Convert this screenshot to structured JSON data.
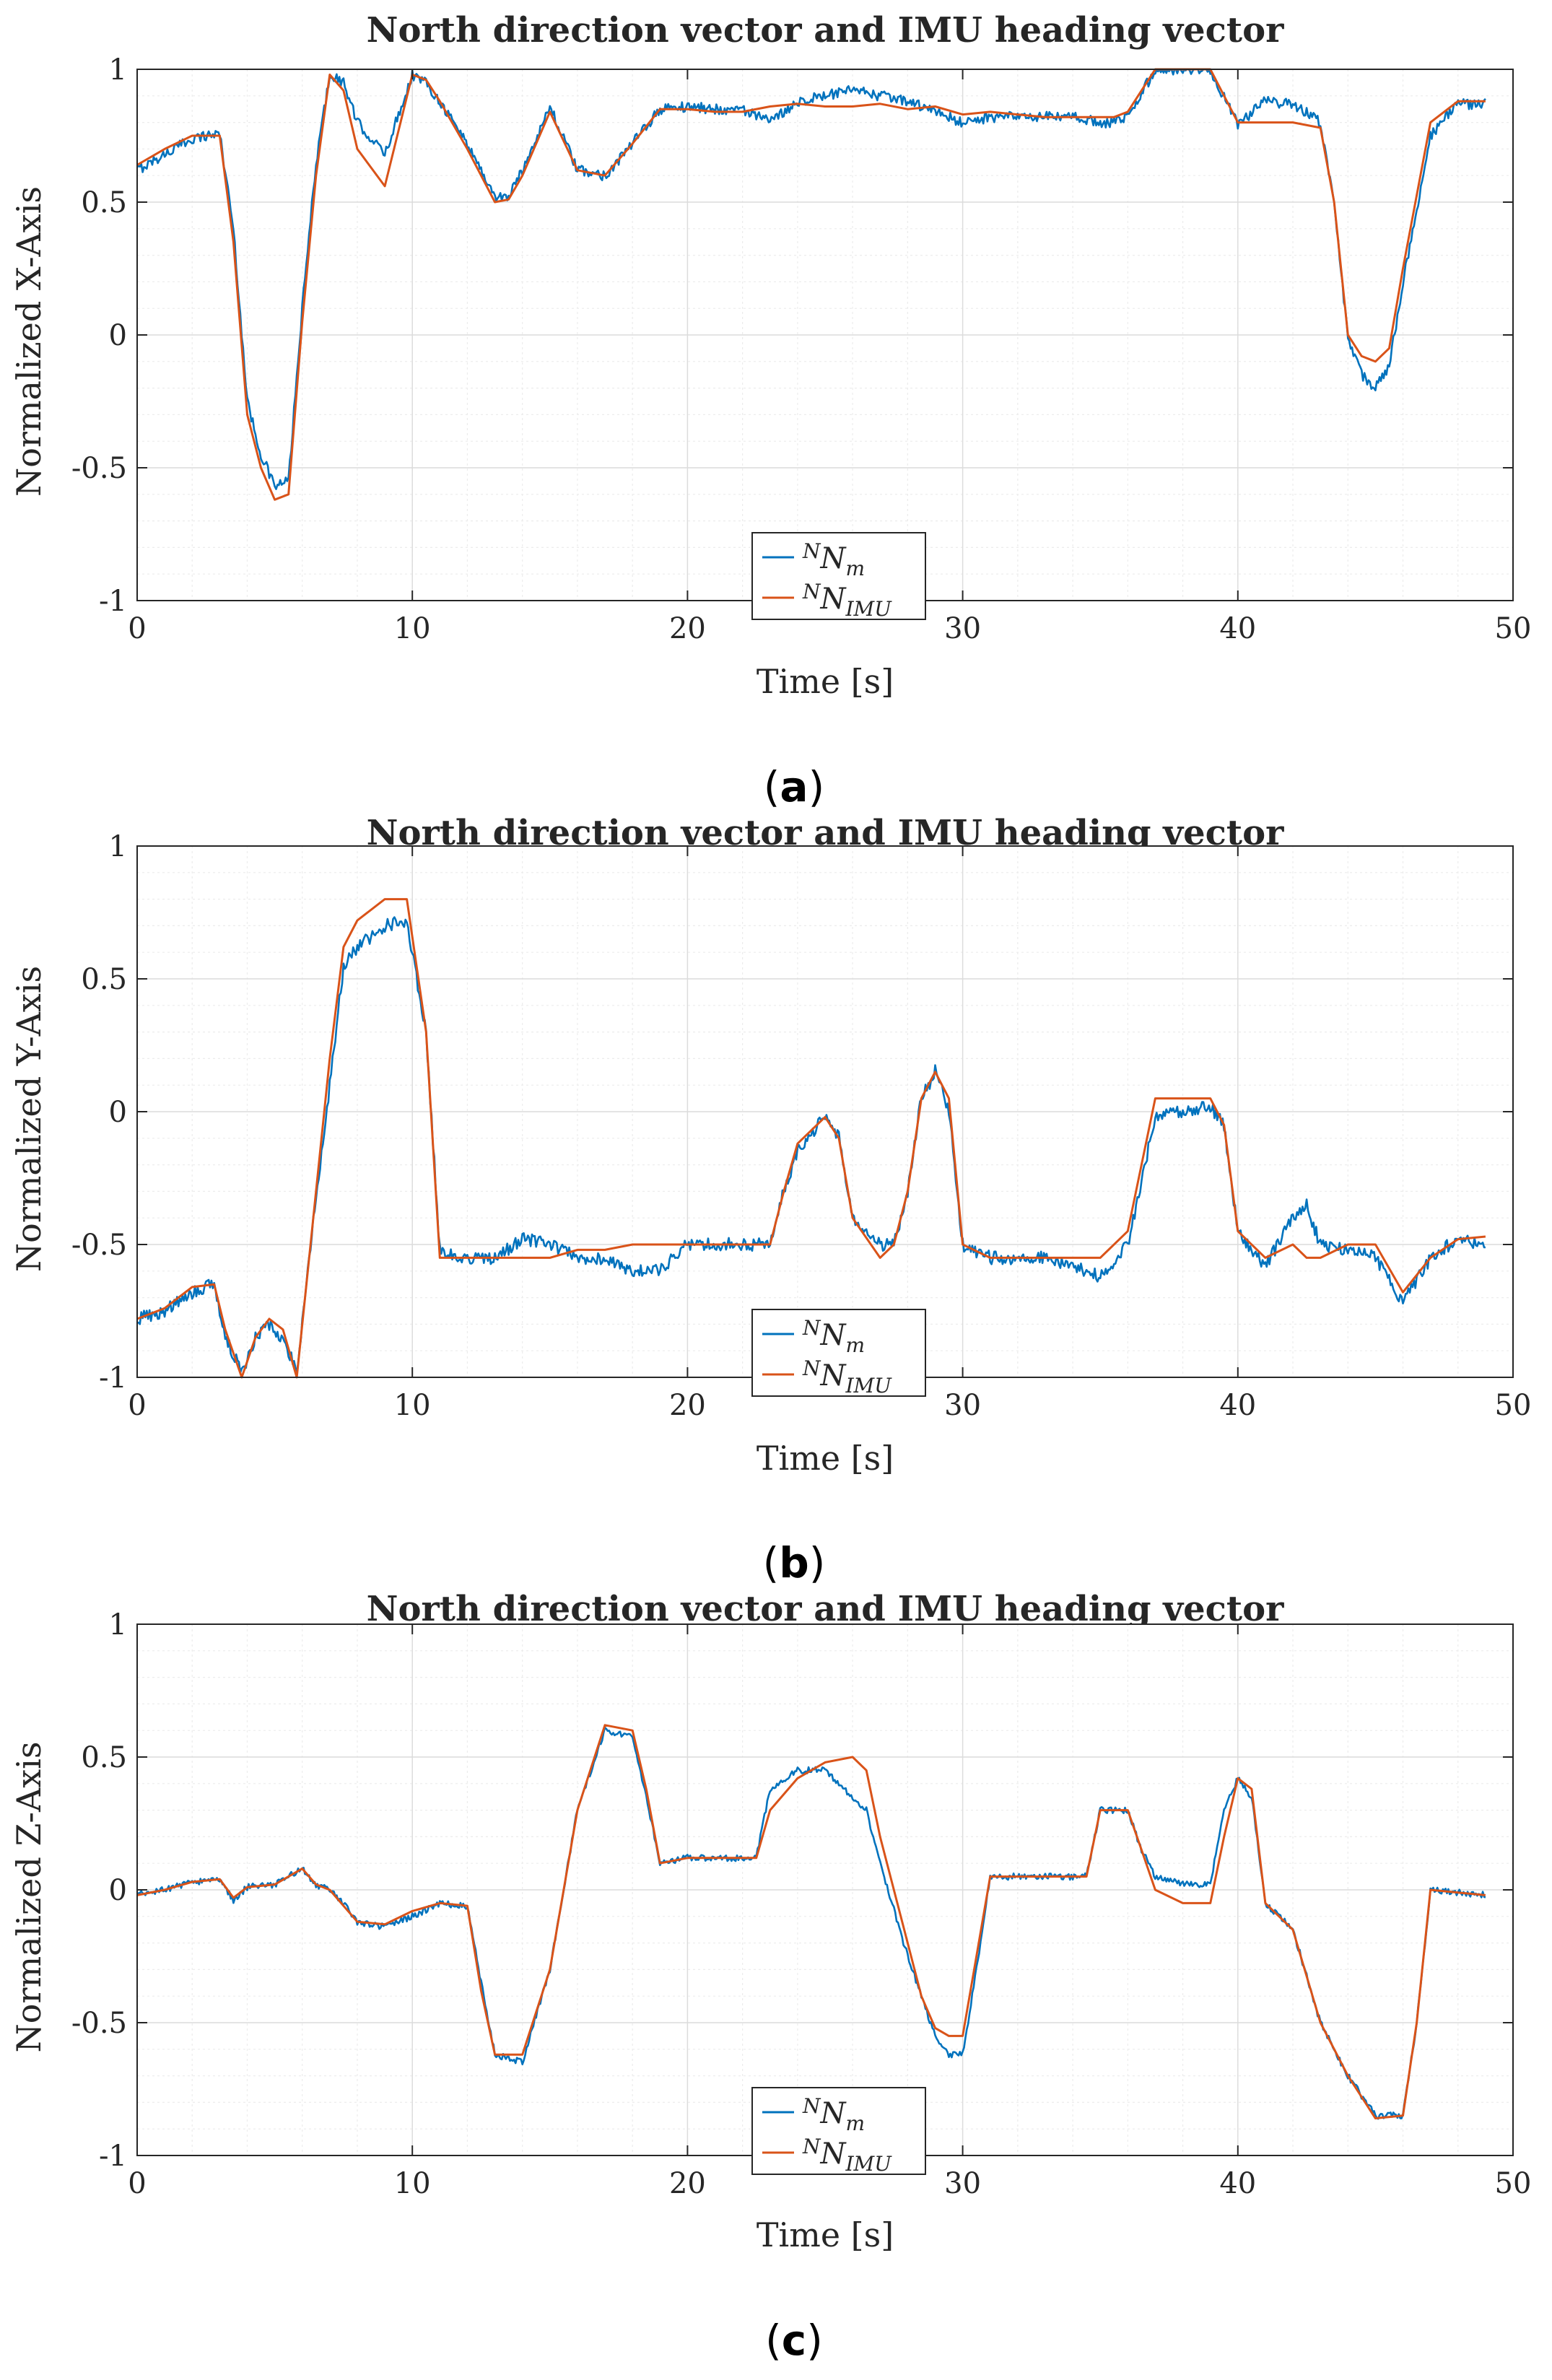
{
  "figure": {
    "panels": [
      {
        "id": "a",
        "caption": "a",
        "title": "North direction vector and IMU heading vector",
        "ylabel": "Normalized X-Axis",
        "xlabel": "Time [s]"
      },
      {
        "id": "b",
        "caption": "b",
        "title": "North direction vector and IMU heading vector",
        "ylabel": "Normalized Y-Axis",
        "xlabel": "Time [s]"
      },
      {
        "id": "c",
        "caption": "c",
        "title": "North direction vector and IMU heading vector",
        "ylabel": "Normalized Z-Axis",
        "xlabel": "Time [s]"
      }
    ],
    "legend": {
      "measured": {
        "base": "N",
        "sup": "N",
        "sub": "m"
      },
      "imu": {
        "base": "N",
        "sup": "N",
        "sub": "IMU"
      }
    }
  },
  "chart_data": [
    {
      "type": "line",
      "title": "North direction vector and IMU heading vector",
      "xlabel": "Time [s]",
      "ylabel": "Normalized X-Axis",
      "xlim": [
        0,
        50
      ],
      "ylim": [
        -1,
        1
      ],
      "xticks": [
        "0",
        "10",
        "20",
        "30",
        "40",
        "50"
      ],
      "yticks": [
        "-1",
        "-0.5",
        "0",
        "0.5",
        "1"
      ],
      "grid": true,
      "legend_position": "bottom-center",
      "series": [
        {
          "name": "N_m",
          "color": "#0072BD",
          "noise": 0.02,
          "x": [
            0,
            1,
            2,
            3,
            3.5,
            4,
            4.5,
            5,
            5.5,
            6,
            6.5,
            7,
            7.5,
            8,
            9,
            10,
            10.5,
            11,
            12,
            13,
            13.5,
            14,
            15,
            16,
            17,
            18,
            19,
            20,
            21,
            22,
            23,
            24,
            25,
            26,
            27,
            28,
            29,
            30,
            31,
            32,
            33,
            34,
            35,
            35.5,
            36,
            37,
            38,
            39,
            40,
            41,
            42,
            43,
            43.5,
            44,
            44.5,
            45,
            45.5,
            46,
            47,
            48,
            49
          ],
          "y": [
            0.62,
            0.68,
            0.74,
            0.76,
            0.4,
            -0.25,
            -0.45,
            -0.57,
            -0.55,
            0.1,
            0.65,
            0.98,
            0.95,
            0.8,
            0.68,
            0.98,
            0.95,
            0.88,
            0.72,
            0.52,
            0.52,
            0.62,
            0.86,
            0.62,
            0.6,
            0.72,
            0.85,
            0.86,
            0.85,
            0.85,
            0.8,
            0.88,
            0.9,
            0.92,
            0.9,
            0.88,
            0.84,
            0.8,
            0.82,
            0.82,
            0.82,
            0.82,
            0.8,
            0.8,
            0.82,
            1.0,
            1.0,
            1.0,
            0.79,
            0.88,
            0.87,
            0.8,
            0.5,
            -0.02,
            -0.15,
            -0.2,
            -0.12,
            0.2,
            0.75,
            0.87,
            0.87
          ]
        },
        {
          "name": "N_IMU",
          "color": "#D95319",
          "noise": 0,
          "x": [
            0,
            1,
            2,
            3,
            3.5,
            4,
            4.5,
            5,
            5.5,
            6,
            6.5,
            7,
            7.5,
            8,
            9,
            10,
            10.5,
            11,
            12,
            13,
            13.5,
            14,
            15,
            16,
            17,
            18,
            19,
            20,
            21,
            22,
            23,
            24,
            25,
            26,
            27,
            28,
            29,
            30,
            31,
            32,
            33,
            34,
            35,
            35.5,
            36,
            37,
            38,
            39,
            40,
            41,
            42,
            43,
            43.5,
            44,
            44.5,
            45,
            45.5,
            46,
            47,
            48,
            49
          ],
          "y": [
            0.64,
            0.7,
            0.75,
            0.75,
            0.35,
            -0.3,
            -0.5,
            -0.62,
            -0.6,
            0.05,
            0.6,
            0.98,
            0.92,
            0.7,
            0.56,
            0.98,
            0.96,
            0.88,
            0.7,
            0.5,
            0.51,
            0.6,
            0.84,
            0.62,
            0.6,
            0.72,
            0.85,
            0.85,
            0.84,
            0.84,
            0.86,
            0.87,
            0.86,
            0.86,
            0.87,
            0.85,
            0.86,
            0.83,
            0.84,
            0.83,
            0.82,
            0.82,
            0.82,
            0.82,
            0.84,
            1.0,
            1.0,
            1.0,
            0.8,
            0.8,
            0.8,
            0.78,
            0.5,
            0.0,
            -0.08,
            -0.1,
            -0.05,
            0.25,
            0.8,
            0.88,
            0.88
          ]
        }
      ]
    },
    {
      "type": "line",
      "title": "North direction vector and IMU heading vector",
      "xlabel": "Time [s]",
      "ylabel": "Normalized Y-Axis",
      "xlim": [
        0,
        50
      ],
      "ylim": [
        -1,
        1
      ],
      "xticks": [
        "0",
        "10",
        "20",
        "30",
        "40",
        "50"
      ],
      "yticks": [
        "-1",
        "-0.5",
        "0",
        "0.5",
        "1"
      ],
      "grid": true,
      "legend_position": "bottom-center",
      "series": [
        {
          "name": "N_m",
          "color": "#0072BD",
          "noise": 0.025,
          "x": [
            0,
            1,
            2,
            2.8,
            3.2,
            3.8,
            4.3,
            4.8,
            5.3,
            5.8,
            6.3,
            7,
            7.5,
            8,
            9,
            9.8,
            10.5,
            11,
            12,
            13,
            14,
            15,
            16,
            17,
            18,
            19,
            20,
            21,
            22,
            23,
            23.5,
            24,
            25,
            25.5,
            26,
            27,
            27.5,
            28,
            28.5,
            29,
            29.5,
            30,
            31,
            32,
            33,
            34,
            35,
            36,
            37,
            38,
            39,
            39.5,
            40,
            41,
            42,
            42.5,
            43,
            44,
            45,
            46,
            47,
            48,
            49
          ],
          "y": [
            -0.78,
            -0.75,
            -0.68,
            -0.65,
            -0.85,
            -0.98,
            -0.85,
            -0.8,
            -0.85,
            -0.98,
            -0.5,
            0.1,
            0.55,
            0.62,
            0.7,
            0.72,
            0.3,
            -0.52,
            -0.55,
            -0.55,
            -0.48,
            -0.5,
            -0.55,
            -0.55,
            -0.6,
            -0.6,
            -0.5,
            -0.5,
            -0.5,
            -0.5,
            -0.3,
            -0.15,
            -0.02,
            -0.1,
            -0.4,
            -0.5,
            -0.5,
            -0.3,
            0.05,
            0.15,
            0.0,
            -0.5,
            -0.55,
            -0.55,
            -0.55,
            -0.58,
            -0.62,
            -0.5,
            -0.02,
            0.0,
            0.02,
            -0.05,
            -0.45,
            -0.58,
            -0.4,
            -0.35,
            -0.5,
            -0.52,
            -0.55,
            -0.72,
            -0.55,
            -0.48,
            -0.5
          ]
        },
        {
          "name": "N_IMU",
          "color": "#D95319",
          "noise": 0,
          "x": [
            0,
            1,
            2,
            2.8,
            3.2,
            3.8,
            4.3,
            4.8,
            5.3,
            5.8,
            6.3,
            7,
            7.5,
            8,
            9,
            9.8,
            10.5,
            11,
            12,
            13,
            14,
            15,
            16,
            17,
            18,
            19,
            20,
            21,
            22,
            23,
            23.5,
            24,
            25,
            25.5,
            26,
            27,
            27.5,
            28,
            28.5,
            29,
            29.5,
            30,
            31,
            32,
            33,
            34,
            35,
            36,
            37,
            38,
            39,
            39.5,
            40,
            41,
            42,
            42.5,
            43,
            44,
            45,
            46,
            47,
            48,
            49
          ],
          "y": [
            -0.78,
            -0.74,
            -0.66,
            -0.65,
            -0.82,
            -1.0,
            -0.85,
            -0.78,
            -0.82,
            -1.0,
            -0.5,
            0.2,
            0.62,
            0.72,
            0.8,
            0.8,
            0.3,
            -0.55,
            -0.55,
            -0.55,
            -0.55,
            -0.55,
            -0.52,
            -0.52,
            -0.5,
            -0.5,
            -0.5,
            -0.5,
            -0.5,
            -0.5,
            -0.3,
            -0.12,
            -0.02,
            -0.1,
            -0.4,
            -0.55,
            -0.5,
            -0.3,
            0.05,
            0.15,
            0.05,
            -0.5,
            -0.55,
            -0.55,
            -0.55,
            -0.55,
            -0.55,
            -0.45,
            0.05,
            0.05,
            0.05,
            -0.05,
            -0.45,
            -0.55,
            -0.5,
            -0.55,
            -0.55,
            -0.5,
            -0.5,
            -0.68,
            -0.55,
            -0.48,
            -0.47
          ]
        }
      ]
    },
    {
      "type": "line",
      "title": "North direction vector and IMU heading vector",
      "xlabel": "Time [s]",
      "ylabel": "Normalized Z-Axis",
      "xlim": [
        0,
        50
      ],
      "ylim": [
        -1,
        1
      ],
      "xticks": [
        "0",
        "10",
        "20",
        "30",
        "40",
        "50"
      ],
      "yticks": [
        "-1",
        "-0.5",
        "0",
        "0.5",
        "1"
      ],
      "grid": true,
      "legend_position": "bottom-center",
      "series": [
        {
          "name": "N_m",
          "color": "#0072BD",
          "noise": 0.012,
          "x": [
            0,
            1,
            2,
            3,
            3.5,
            4,
            5,
            6,
            6.5,
            7,
            7.5,
            8,
            9,
            10,
            11,
            12,
            12.5,
            13,
            14,
            15,
            16,
            17,
            18,
            18.5,
            19,
            20,
            21,
            22,
            22.5,
            23,
            24,
            25,
            26,
            26.5,
            27,
            28,
            28.5,
            29,
            29.5,
            30,
            30.5,
            31,
            32,
            33,
            34,
            34.5,
            35,
            36,
            36.5,
            37,
            38,
            39,
            39.5,
            40,
            40.5,
            41,
            42,
            43,
            44,
            45,
            46,
            46.5,
            47,
            48,
            49
          ],
          "y": [
            -0.02,
            0.0,
            0.03,
            0.04,
            -0.04,
            0.01,
            0.02,
            0.08,
            0.02,
            0.0,
            -0.05,
            -0.12,
            -0.14,
            -0.1,
            -0.05,
            -0.06,
            -0.35,
            -0.62,
            -0.65,
            -0.3,
            0.3,
            0.6,
            0.58,
            0.35,
            0.1,
            0.12,
            0.12,
            0.12,
            0.12,
            0.38,
            0.45,
            0.45,
            0.35,
            0.3,
            0.1,
            -0.25,
            -0.4,
            -0.55,
            -0.62,
            -0.62,
            -0.3,
            0.05,
            0.05,
            0.05,
            0.05,
            0.05,
            0.3,
            0.3,
            0.15,
            0.05,
            0.02,
            0.02,
            0.3,
            0.42,
            0.35,
            -0.05,
            -0.15,
            -0.5,
            -0.7,
            -0.85,
            -0.85,
            -0.5,
            0.0,
            -0.01,
            -0.02
          ]
        },
        {
          "name": "N_IMU",
          "color": "#D95319",
          "noise": 0,
          "x": [
            0,
            1,
            2,
            3,
            3.5,
            4,
            5,
            6,
            6.5,
            7,
            7.5,
            8,
            9,
            10,
            11,
            12,
            12.5,
            13,
            14,
            15,
            16,
            17,
            18,
            18.5,
            19,
            20,
            21,
            22,
            22.5,
            23,
            24,
            25,
            26,
            26.5,
            27,
            28,
            28.5,
            29,
            29.5,
            30,
            30.5,
            31,
            32,
            33,
            34,
            34.5,
            35,
            36,
            36.5,
            37,
            38,
            39,
            39.5,
            40,
            40.5,
            41,
            42,
            43,
            44,
            45,
            46,
            46.5,
            47,
            48,
            49
          ],
          "y": [
            -0.02,
            0.0,
            0.03,
            0.04,
            -0.03,
            0.01,
            0.02,
            0.08,
            0.02,
            0.0,
            -0.06,
            -0.12,
            -0.13,
            -0.08,
            -0.05,
            -0.06,
            -0.38,
            -0.62,
            -0.62,
            -0.3,
            0.3,
            0.62,
            0.6,
            0.38,
            0.1,
            0.12,
            0.12,
            0.12,
            0.12,
            0.3,
            0.42,
            0.48,
            0.5,
            0.45,
            0.2,
            -0.2,
            -0.4,
            -0.52,
            -0.55,
            -0.55,
            -0.25,
            0.05,
            0.05,
            0.05,
            0.05,
            0.05,
            0.3,
            0.3,
            0.15,
            0.0,
            -0.05,
            -0.05,
            0.2,
            0.42,
            0.38,
            -0.05,
            -0.15,
            -0.5,
            -0.7,
            -0.86,
            -0.85,
            -0.5,
            0.0,
            -0.01,
            -0.02
          ]
        }
      ]
    }
  ]
}
